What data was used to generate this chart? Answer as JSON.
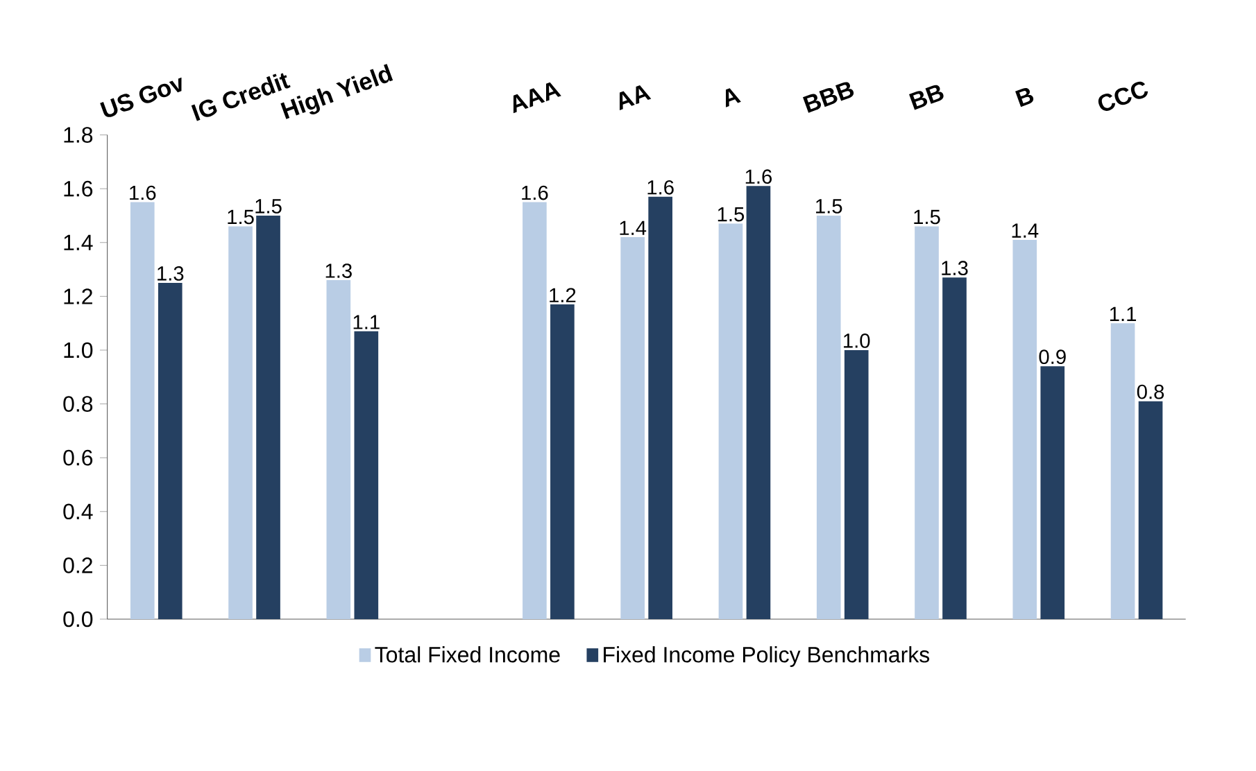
{
  "chart_data": {
    "type": "bar",
    "categories": [
      "US Gov",
      "IG Credit",
      "High Yield",
      null,
      "AAA",
      "AA",
      "A",
      "BBB",
      "BB",
      "B",
      "CCC"
    ],
    "series": [
      {
        "name": "Total Fixed Income",
        "color": "#b9cde5",
        "values": [
          1.55,
          1.46,
          1.26,
          null,
          1.55,
          1.42,
          1.47,
          1.5,
          1.46,
          1.41,
          1.1
        ],
        "value_labels": [
          "1.6",
          "1.5",
          "1.3",
          null,
          "1.6",
          "1.4",
          "1.5",
          "1.5",
          "1.5",
          "1.4",
          "1.1"
        ]
      },
      {
        "name": "Fixed Income Policy Benchmarks",
        "color": "#254061",
        "values": [
          1.25,
          1.5,
          1.07,
          null,
          1.17,
          1.57,
          1.61,
          1.0,
          1.27,
          0.94,
          0.81
        ],
        "value_labels": [
          "1.3",
          "1.5",
          "1.1",
          null,
          "1.2",
          "1.6",
          "1.6",
          "1.0",
          "1.3",
          "0.9",
          "0.8"
        ]
      }
    ],
    "ylim": [
      0,
      1.8
    ],
    "yticks": [
      {
        "value": 0,
        "label": "0.0"
      },
      {
        "value": 0.2,
        "label": "0.2"
      },
      {
        "value": 0.4,
        "label": "0.4"
      },
      {
        "value": 0.6,
        "label": "0.6"
      },
      {
        "value": 0.8,
        "label": "0.8"
      },
      {
        "value": 1.0,
        "label": "1.0"
      },
      {
        "value": 1.2,
        "label": "1.2"
      },
      {
        "value": 1.4,
        "label": "1.4"
      },
      {
        "value": 1.6,
        "label": "1.6"
      },
      {
        "value": 1.8,
        "label": "1.8"
      }
    ],
    "grid": false,
    "legend": "bottom"
  }
}
